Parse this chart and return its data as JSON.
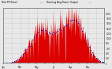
{
  "title": "Total PV Panel   Running Average Power Output",
  "ylim": [
    0,
    2200
  ],
  "yticks": [
    0,
    200,
    400,
    600,
    800,
    1000,
    1200,
    1400,
    1600,
    1800,
    2000
  ],
  "num_points": 365,
  "background_color": "#e8e8e8",
  "plot_bg_color": "#e8e8e8",
  "fill_color": "#dd0000",
  "avg_color": "#0000cc",
  "grid_color": "#aaaaaa",
  "title_bg": "#cccccc",
  "border_color": "#888888"
}
